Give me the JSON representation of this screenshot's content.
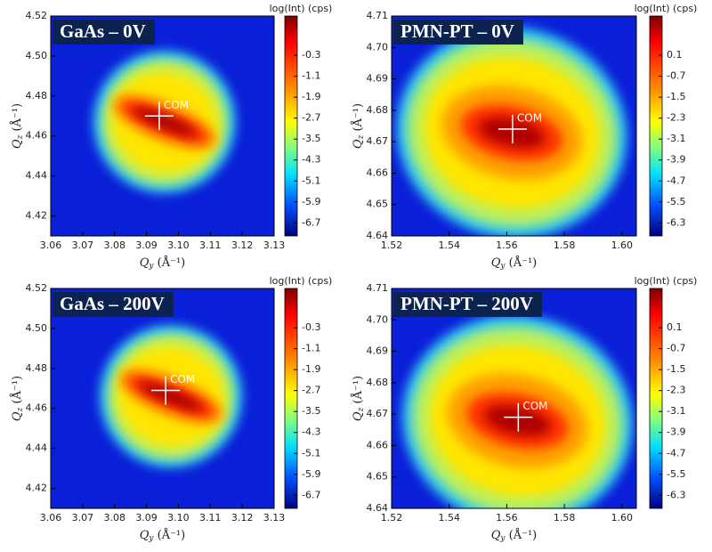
{
  "chart_data": [
    {
      "type": "heatmap",
      "title": "GaAs –  0V",
      "xlabel": {
        "main": "Q",
        "sub": "y",
        "unit": " (Å⁻¹)"
      },
      "ylabel": {
        "main": "Q",
        "sub": "z",
        "unit": " (Å⁻¹)"
      },
      "xlim": [
        3.06,
        3.13
      ],
      "xticks": [
        3.06,
        3.07,
        3.08,
        3.09,
        {
          "value": 3.1,
          "label": "3.10"
        },
        3.11,
        3.12,
        3.13
      ],
      "ylim": [
        4.41,
        4.52
      ],
      "yticks": [
        4.42,
        4.44,
        4.46,
        4.48,
        {
          "value": 4.5,
          "label": "4.50"
        },
        4.52
      ],
      "colorbar": {
        "label": "log(Int) (cps)",
        "lim": [
          -7.2,
          1.2
        ],
        "ticks": [
          -0.3,
          -1.1,
          -1.9,
          -2.7,
          -3.5,
          -4.3,
          -5.1,
          -5.9,
          -6.7
        ]
      },
      "com": {
        "label": "COM",
        "x": 3.094,
        "y": 4.47
      }
    },
    {
      "type": "heatmap",
      "title": "PMN-PT –  0V",
      "xlabel": {
        "main": "Q",
        "sub": "y",
        "unit": " (Å⁻¹)"
      },
      "ylabel": {
        "main": "Q",
        "sub": "z",
        "unit": " (Å⁻¹)"
      },
      "xlim": [
        1.52,
        1.605
      ],
      "xticks": [
        1.52,
        1.54,
        1.56,
        1.58,
        {
          "value": 1.6,
          "label": "1.60"
        }
      ],
      "ylim": [
        4.64,
        4.71
      ],
      "yticks": [
        4.64,
        4.65,
        4.66,
        4.67,
        4.68,
        4.69,
        {
          "value": 4.7,
          "label": "4.70"
        },
        4.71
      ],
      "colorbar": {
        "label": "log(Int) (cps)",
        "lim": [
          -6.8,
          1.6
        ],
        "ticks": [
          0.1,
          -0.7,
          -1.5,
          -2.3,
          -3.1,
          -3.9,
          -4.7,
          -5.5,
          -6.3
        ]
      },
      "com": {
        "label": "COM",
        "x": 1.562,
        "y": 4.674
      }
    },
    {
      "type": "heatmap",
      "title": "GaAs –  200V",
      "xlabel": {
        "main": "Q",
        "sub": "y",
        "unit": " (Å⁻¹)"
      },
      "ylabel": {
        "main": "Q",
        "sub": "z",
        "unit": " (Å⁻¹)"
      },
      "xlim": [
        3.06,
        3.13
      ],
      "xticks": [
        3.06,
        3.07,
        3.08,
        3.09,
        {
          "value": 3.1,
          "label": "3.10"
        },
        3.11,
        3.12,
        3.13
      ],
      "ylim": [
        4.41,
        4.52
      ],
      "yticks": [
        4.42,
        4.44,
        4.46,
        4.48,
        {
          "value": 4.5,
          "label": "4.50"
        },
        4.52
      ],
      "colorbar": {
        "label": "log(Int) (cps)",
        "lim": [
          -7.2,
          1.2
        ],
        "ticks": [
          -0.3,
          -1.1,
          -1.9,
          -2.7,
          -3.5,
          -4.3,
          -5.1,
          -5.9,
          -6.7
        ]
      },
      "com": {
        "label": "COM",
        "x": 3.096,
        "y": 4.469
      }
    },
    {
      "type": "heatmap",
      "title": "PMN-PT –  200V",
      "xlabel": {
        "main": "Q",
        "sub": "y",
        "unit": " (Å⁻¹)"
      },
      "ylabel": {
        "main": "Q",
        "sub": "z",
        "unit": " (Å⁻¹)"
      },
      "xlim": [
        1.52,
        1.605
      ],
      "xticks": [
        1.52,
        1.54,
        1.56,
        1.58,
        {
          "value": 1.6,
          "label": "1.60"
        }
      ],
      "ylim": [
        4.64,
        4.71
      ],
      "yticks": [
        4.64,
        4.65,
        4.66,
        4.67,
        4.68,
        4.69,
        {
          "value": 4.7,
          "label": "4.70"
        },
        4.71
      ],
      "colorbar": {
        "label": "log(Int) (cps)",
        "lim": [
          -6.8,
          1.6
        ],
        "ticks": [
          0.1,
          -0.7,
          -1.5,
          -2.3,
          -3.1,
          -3.9,
          -4.7,
          -5.5,
          -6.3
        ]
      },
      "com": {
        "label": "COM",
        "x": 1.564,
        "y": 4.669
      }
    }
  ]
}
